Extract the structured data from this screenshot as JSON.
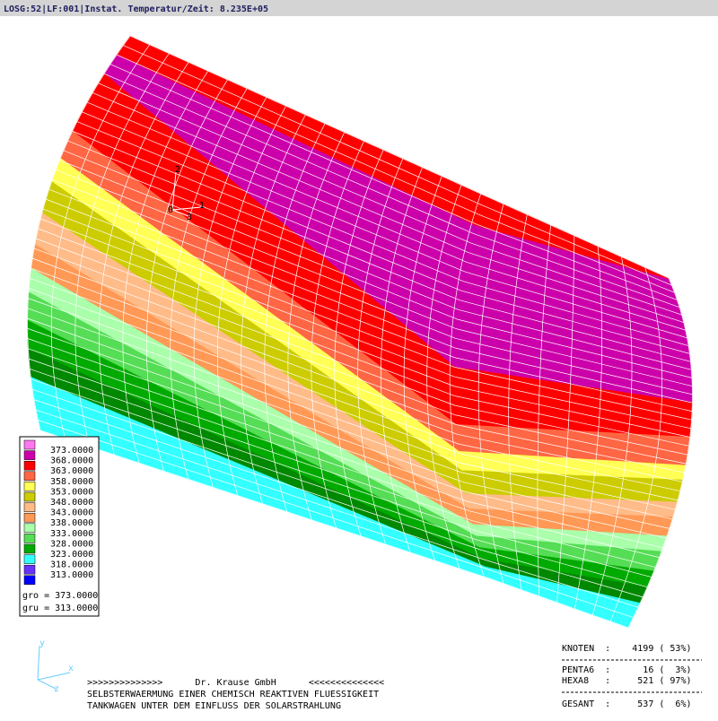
{
  "title_bar": "LOSG:52|LF:001|Instat. Temperatur/Zeit: 8.235E+05",
  "model_triad": {
    "axis_2": "2",
    "axis_1": "1",
    "axis_3": "3",
    "origin": "0"
  },
  "legend": {
    "entries": [
      {
        "label": "373.0000",
        "color": "#ff77ee"
      },
      {
        "label": "368.0000",
        "color": "#cc00aa"
      },
      {
        "label": "363.0000",
        "color": "#ff0000"
      },
      {
        "label": "358.0000",
        "color": "#ff6644"
      },
      {
        "label": "353.0000",
        "color": "#ffff55"
      },
      {
        "label": "348.0000",
        "color": "#cccc00"
      },
      {
        "label": "343.0000",
        "color": "#ffbb88"
      },
      {
        "label": "338.0000",
        "color": "#ff9955"
      },
      {
        "label": "333.0000",
        "color": "#aaffaa"
      },
      {
        "label": "328.0000",
        "color": "#55dd55"
      },
      {
        "label": "323.0000",
        "color": "#00aa00"
      },
      {
        "label": "318.0000",
        "color": "#33ffff"
      },
      {
        "label": "313.0000",
        "color": "#6633ff"
      },
      {
        "label": "",
        "color": "#0000ff"
      }
    ],
    "gro": "gro = 373.0000",
    "gru": "gru = 313.0000"
  },
  "view_triad": {
    "y": "y",
    "x": "x",
    "z": "z"
  },
  "footer": {
    "line1": ">>>>>>>>>>>>>>      Dr. Krause GmbH      <<<<<<<<<<<<<<",
    "line2": "SELBSTERWAERMUNG EINER CHEMISCH REAKTIVEN FLUESSIGKEIT",
    "line3": "TANKWAGEN UNTER DEM EINFLUSS DER SOLARSTRAHLUNG"
  },
  "stats": {
    "rows": [
      "KNOTEN  :    4199 ( 53%)",
      "PENTA6  :      16 (  3%)",
      "HEXA8   :     521 ( 97%)",
      "GESANT  :     537 (  6%)"
    ]
  }
}
